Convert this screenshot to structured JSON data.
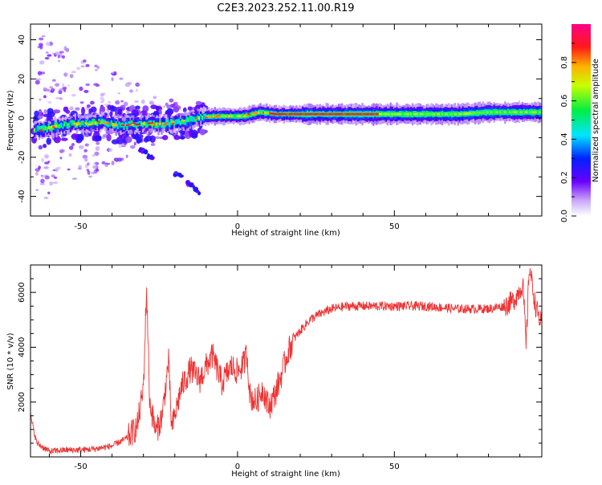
{
  "title": "C2E3.2023.252.11.00.R19",
  "colors": {
    "snr_line": "#ee3333",
    "frame": "#000000"
  },
  "chart_data": [
    {
      "type": "heatmap",
      "name": "spectrogram",
      "xlabel": "Height of straight line (km)",
      "ylabel": "Frequency (Hz)",
      "xlim": [
        -66,
        97
      ],
      "ylim": [
        -50,
        48
      ],
      "x_ticks": [
        -50,
        0,
        50
      ],
      "y_ticks": [
        -40,
        -20,
        0,
        20,
        40
      ],
      "colorbar": {
        "label": "Normalized spectral amplitude",
        "range": [
          0,
          1
        ],
        "ticks": [
          "0.0",
          "0.2",
          "0.4",
          "0.6",
          "0.8"
        ],
        "colormap": "rainbow (white-purple-blue-cyan-green-yellow-red-magenta)"
      },
      "ridge_frequency_hz": [
        [
          -63,
          -6
        ],
        [
          -58,
          -4
        ],
        [
          -53,
          -3
        ],
        [
          -48,
          -3
        ],
        [
          -43,
          -2
        ],
        [
          -38,
          -4
        ],
        [
          -33,
          -3
        ],
        [
          -28,
          -3
        ],
        [
          -23,
          -3
        ],
        [
          -18,
          -2
        ],
        [
          -13,
          0
        ],
        [
          -8,
          1
        ],
        [
          -3,
          1
        ],
        [
          2,
          1
        ],
        [
          7,
          3
        ],
        [
          12,
          2
        ],
        [
          20,
          2
        ],
        [
          30,
          2
        ],
        [
          40,
          2
        ],
        [
          50,
          2
        ],
        [
          60,
          2
        ],
        [
          70,
          2
        ],
        [
          80,
          3
        ],
        [
          90,
          3
        ],
        [
          97,
          3
        ]
      ],
      "scatter_branches": [
        {
          "from": [
            -31,
            -16
          ],
          "to": [
            -27,
            -21
          ]
        },
        {
          "from": [
            -20,
            -28
          ],
          "to": [
            -12,
            -38
          ]
        }
      ],
      "high_amplitude_region_km": [
        10,
        45
      ]
    },
    {
      "type": "line",
      "name": "snr",
      "xlabel": "Height of straight line (km)",
      "ylabel": "SNR (10 * v/v)",
      "xlim": [
        -66,
        97
      ],
      "ylim": [
        0,
        7000
      ],
      "x_ticks": [
        -50,
        0,
        50
      ],
      "y_ticks": [
        2000,
        4000,
        6000
      ],
      "envelope": [
        [
          -66,
          1500
        ],
        [
          -64,
          500
        ],
        [
          -60,
          200
        ],
        [
          -55,
          250
        ],
        [
          -50,
          250
        ],
        [
          -45,
          300
        ],
        [
          -40,
          400
        ],
        [
          -35,
          700
        ],
        [
          -32,
          1100
        ],
        [
          -30,
          2500
        ],
        [
          -29,
          6200
        ],
        [
          -28,
          2000
        ],
        [
          -26,
          900
        ],
        [
          -24,
          1500
        ],
        [
          -22,
          3500
        ],
        [
          -21,
          1000
        ],
        [
          -18,
          2500
        ],
        [
          -15,
          3200
        ],
        [
          -12,
          2800
        ],
        [
          -10,
          3300
        ],
        [
          -8,
          3700
        ],
        [
          -5,
          2700
        ],
        [
          -2,
          3300
        ],
        [
          0,
          3100
        ],
        [
          2,
          3400
        ],
        [
          3,
          3800
        ],
        [
          4,
          2200
        ],
        [
          6,
          2000
        ],
        [
          8,
          2500
        ],
        [
          10,
          1800
        ],
        [
          12,
          2300
        ],
        [
          14,
          3000
        ],
        [
          16,
          3800
        ],
        [
          18,
          4300
        ],
        [
          20,
          4600
        ],
        [
          23,
          5000
        ],
        [
          26,
          5200
        ],
        [
          30,
          5400
        ],
        [
          35,
          5500
        ],
        [
          40,
          5500
        ],
        [
          50,
          5500
        ],
        [
          60,
          5500
        ],
        [
          70,
          5400
        ],
        [
          80,
          5400
        ],
        [
          85,
          5500
        ],
        [
          88,
          5700
        ],
        [
          91,
          6300
        ],
        [
          92,
          4000
        ],
        [
          93,
          7000
        ],
        [
          95,
          5500
        ],
        [
          97,
          4800
        ]
      ]
    }
  ]
}
